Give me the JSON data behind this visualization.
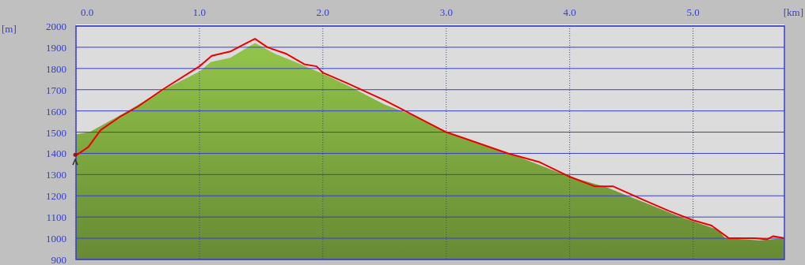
{
  "chart_data": {
    "type": "area",
    "xlabel": "[km]",
    "ylabel": "[m]",
    "xlim": [
      0,
      5.74
    ],
    "xticks": [
      {
        "value": 0,
        "label": "0.0"
      },
      {
        "value": 1,
        "label": "1.0"
      },
      {
        "value": 2,
        "label": "2.0"
      },
      {
        "value": 3,
        "label": "3.0"
      },
      {
        "value": 4,
        "label": "4.0"
      },
      {
        "value": 5,
        "label": "5.0"
      }
    ],
    "ylim": [
      900,
      2000
    ],
    "yticks": [
      900,
      1000,
      1100,
      1200,
      1300,
      1400,
      1500,
      1600,
      1700,
      1800,
      1900,
      2000
    ],
    "grid": true,
    "series": [
      {
        "color": "#7ba53e",
        "x": [
          0,
          0.11,
          0.39,
          0.71,
          1.0,
          1.09,
          1.25,
          1.45,
          1.61,
          1.78,
          2.0,
          2.2,
          2.5,
          2.73,
          3.0,
          3.3,
          3.6,
          4.0,
          4.3,
          4.6,
          4.9,
          5.0,
          5.2,
          5.26,
          5.54,
          5.74
        ],
        "values": [
          1490,
          1500,
          1590,
          1700,
          1785,
          1830,
          1850,
          1920,
          1870,
          1830,
          1775,
          1720,
          1630,
          1580,
          1500,
          1440,
          1380,
          1290,
          1240,
          1170,
          1100,
          1080,
          1040,
          1000,
          990,
          1000
        ]
      },
      {
        "type": "line",
        "color": "#ee0000",
        "line_style": "solid",
        "marker": "none",
        "x": [
          0,
          0.1,
          0.2,
          0.35,
          0.5,
          0.7,
          1.0,
          1.1,
          1.25,
          1.35,
          1.45,
          1.55,
          1.7,
          1.85,
          1.95,
          2.0,
          2.2,
          2.5,
          2.7,
          3.0,
          3.2,
          3.5,
          3.75,
          4.0,
          4.2,
          4.35,
          4.6,
          4.8,
          5.0,
          5.15,
          5.29,
          5.5,
          5.6,
          5.65,
          5.74
        ],
        "values": [
          1390,
          1430,
          1510,
          1570,
          1620,
          1700,
          1810,
          1860,
          1880,
          1910,
          1940,
          1900,
          1870,
          1820,
          1810,
          1780,
          1730,
          1650,
          1590,
          1500,
          1460,
          1400,
          1360,
          1290,
          1245,
          1245,
          1180,
          1130,
          1085,
          1060,
          1000,
          1000,
          995,
          1010,
          1000
        ]
      }
    ]
  }
}
